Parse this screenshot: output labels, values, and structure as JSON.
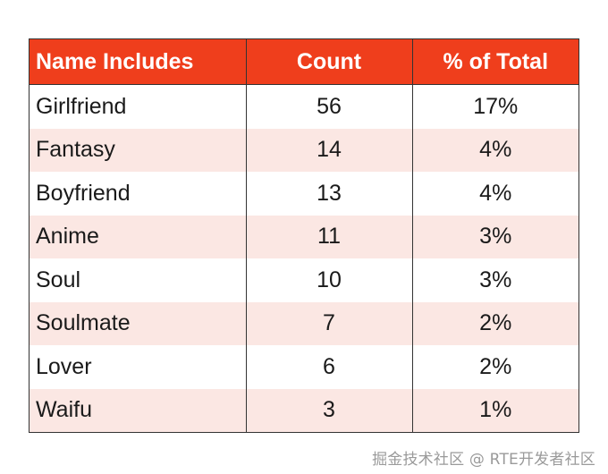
{
  "chart_data": {
    "type": "table",
    "columns": [
      "Name Includes",
      "Count",
      "% of Total"
    ],
    "rows": [
      {
        "name": "Girlfriend",
        "count": "56",
        "pct": "17%"
      },
      {
        "name": "Fantasy",
        "count": "14",
        "pct": "4%"
      },
      {
        "name": "Boyfriend",
        "count": "13",
        "pct": "4%"
      },
      {
        "name": "Anime",
        "count": "11",
        "pct": "3%"
      },
      {
        "name": "Soul",
        "count": "10",
        "pct": "3%"
      },
      {
        "name": "Soulmate",
        "count": "7",
        "pct": "2%"
      },
      {
        "name": "Lover",
        "count": "6",
        "pct": "2%"
      },
      {
        "name": "Waifu",
        "count": "3",
        "pct": "1%"
      }
    ],
    "colors": {
      "header_bg": "#ef3e1c",
      "header_text": "#ffffff",
      "alt_row_bg": "#fbe7e3"
    }
  },
  "watermark": "掘金技术社区 @ RTE开发者社区"
}
